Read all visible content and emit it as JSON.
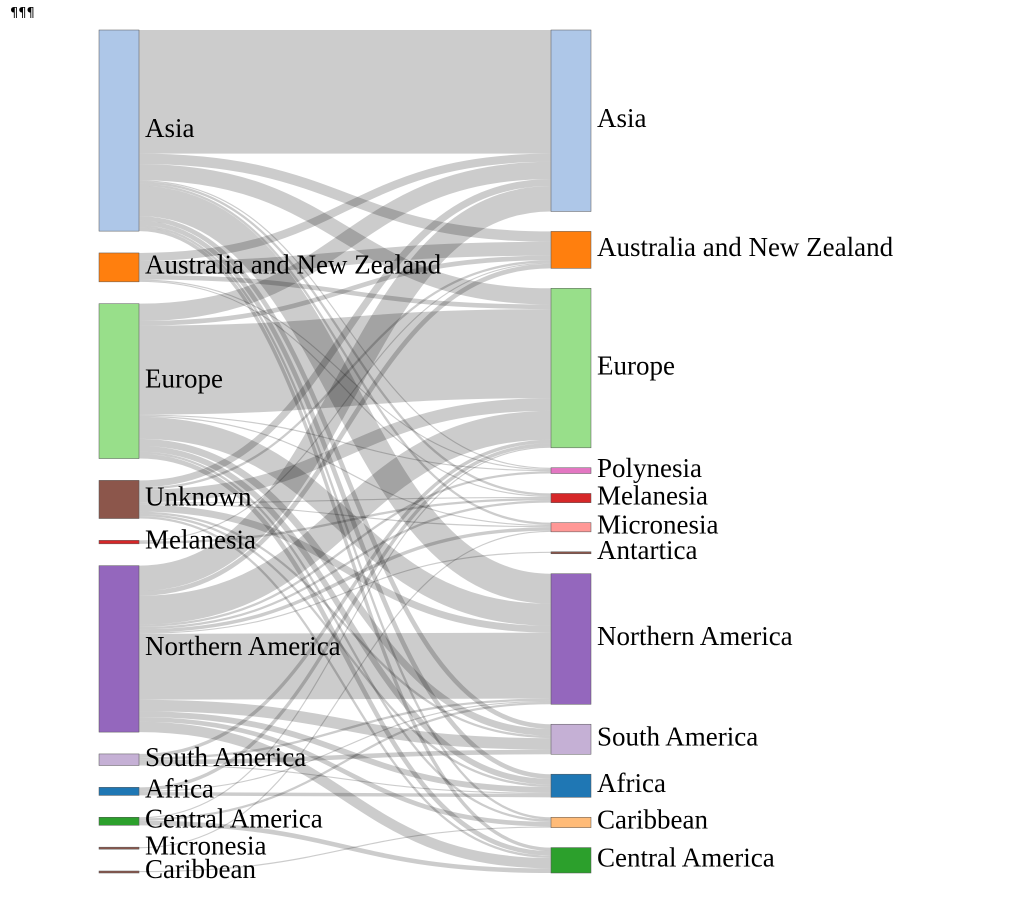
{
  "marker": "¶¶¶",
  "chart_data": {
    "type": "sankey",
    "value_unit": "",
    "source_nodes": [
      {
        "id": "s_asia",
        "label": "Asia",
        "color": "#aec7e8"
      },
      {
        "id": "s_anz",
        "label": "Australia and New Zealand",
        "color": "#ff7f0e"
      },
      {
        "id": "s_europe",
        "label": "Europe",
        "color": "#98df8a"
      },
      {
        "id": "s_unknown",
        "label": "Unknown",
        "color": "#8c564b"
      },
      {
        "id": "s_melanesia",
        "label": "Melanesia",
        "color": "#d62728"
      },
      {
        "id": "s_namerica",
        "label": "Northern America",
        "color": "#9467bd"
      },
      {
        "id": "s_samerica",
        "label": "South America",
        "color": "#c5b0d5"
      },
      {
        "id": "s_africa",
        "label": "Africa",
        "color": "#1f77b4"
      },
      {
        "id": "s_camerica",
        "label": "Central America",
        "color": "#2ca02c"
      },
      {
        "id": "s_micronesia",
        "label": "Micronesia",
        "color": "#8c564b"
      },
      {
        "id": "s_caribbean",
        "label": "Caribbean",
        "color": "#8c564b"
      }
    ],
    "target_nodes": [
      {
        "id": "t_asia",
        "label": "Asia",
        "color": "#aec7e8"
      },
      {
        "id": "t_anz",
        "label": "Australia and New Zealand",
        "color": "#ff7f0e"
      },
      {
        "id": "t_europe",
        "label": "Europe",
        "color": "#98df8a"
      },
      {
        "id": "t_polynesia",
        "label": "Polynesia",
        "color": "#e377c2"
      },
      {
        "id": "t_melanesia",
        "label": "Melanesia",
        "color": "#d62728"
      },
      {
        "id": "t_micronesia",
        "label": "Micronesia",
        "color": "#ff9896"
      },
      {
        "id": "t_antartica",
        "label": "Antartica",
        "color": "#8c564b"
      },
      {
        "id": "t_namerica",
        "label": "Northern America",
        "color": "#9467bd"
      },
      {
        "id": "t_samerica",
        "label": "South America",
        "color": "#c5b0d5"
      },
      {
        "id": "t_africa",
        "label": "Africa",
        "color": "#1f77b4"
      },
      {
        "id": "t_caribbean",
        "label": "Caribbean",
        "color": "#ffbb78"
      },
      {
        "id": "t_camerica",
        "label": "Central America",
        "color": "#2ca02c"
      }
    ],
    "links": [
      {
        "source": "s_asia",
        "target": "t_asia",
        "value": 107
      },
      {
        "source": "s_asia",
        "target": "t_anz",
        "value": 9
      },
      {
        "source": "s_asia",
        "target": "t_europe",
        "value": 14
      },
      {
        "source": "s_asia",
        "target": "t_polynesia",
        "value": 1
      },
      {
        "source": "s_asia",
        "target": "t_melanesia",
        "value": 2
      },
      {
        "source": "s_asia",
        "target": "t_micronesia",
        "value": 2
      },
      {
        "source": "s_asia",
        "target": "t_namerica",
        "value": 26
      },
      {
        "source": "s_asia",
        "target": "t_samerica",
        "value": 4
      },
      {
        "source": "s_asia",
        "target": "t_africa",
        "value": 4
      },
      {
        "source": "s_asia",
        "target": "t_caribbean",
        "value": 2
      },
      {
        "source": "s_asia",
        "target": "t_camerica",
        "value": 3
      },
      {
        "source": "s_anz",
        "target": "t_asia",
        "value": 7
      },
      {
        "source": "s_anz",
        "target": "t_anz",
        "value": 12
      },
      {
        "source": "s_anz",
        "target": "t_europe",
        "value": 4
      },
      {
        "source": "s_anz",
        "target": "t_polynesia",
        "value": 1
      },
      {
        "source": "s_anz",
        "target": "t_melanesia",
        "value": 1
      },
      {
        "source": "s_europe",
        "target": "t_asia",
        "value": 15
      },
      {
        "source": "s_europe",
        "target": "t_anz",
        "value": 4
      },
      {
        "source": "s_europe",
        "target": "t_europe",
        "value": 77
      },
      {
        "source": "s_europe",
        "target": "t_polynesia",
        "value": 1
      },
      {
        "source": "s_europe",
        "target": "t_micronesia",
        "value": 1
      },
      {
        "source": "s_europe",
        "target": "t_namerica",
        "value": 19
      },
      {
        "source": "s_europe",
        "target": "t_samerica",
        "value": 6
      },
      {
        "source": "s_europe",
        "target": "t_africa",
        "value": 5
      },
      {
        "source": "s_europe",
        "target": "t_caribbean",
        "value": 2
      },
      {
        "source": "s_europe",
        "target": "t_camerica",
        "value": 4
      },
      {
        "source": "s_unknown",
        "target": "t_asia",
        "value": 6
      },
      {
        "source": "s_unknown",
        "target": "t_anz",
        "value": 2
      },
      {
        "source": "s_unknown",
        "target": "t_europe",
        "value": 11
      },
      {
        "source": "s_unknown",
        "target": "t_melanesia",
        "value": 1
      },
      {
        "source": "s_unknown",
        "target": "t_micronesia",
        "value": 1
      },
      {
        "source": "s_unknown",
        "target": "t_namerica",
        "value": 6
      },
      {
        "source": "s_unknown",
        "target": "t_samerica",
        "value": 2
      },
      {
        "source": "s_unknown",
        "target": "t_africa",
        "value": 2
      },
      {
        "source": "s_unknown",
        "target": "t_camerica",
        "value": 2
      },
      {
        "source": "s_melanesia",
        "target": "t_anz",
        "value": 1
      },
      {
        "source": "s_melanesia",
        "target": "t_melanesia",
        "value": 2
      },
      {
        "source": "s_namerica",
        "target": "t_asia",
        "value": 22
      },
      {
        "source": "s_namerica",
        "target": "t_anz",
        "value": 4
      },
      {
        "source": "s_namerica",
        "target": "t_europe",
        "value": 25
      },
      {
        "source": "s_namerica",
        "target": "t_polynesia",
        "value": 2
      },
      {
        "source": "s_namerica",
        "target": "t_melanesia",
        "value": 2
      },
      {
        "source": "s_namerica",
        "target": "t_micronesia",
        "value": 3
      },
      {
        "source": "s_namerica",
        "target": "t_antartica",
        "value": 1
      },
      {
        "source": "s_namerica",
        "target": "t_namerica",
        "value": 57
      },
      {
        "source": "s_namerica",
        "target": "t_samerica",
        "value": 10
      },
      {
        "source": "s_namerica",
        "target": "t_africa",
        "value": 5
      },
      {
        "source": "s_namerica",
        "target": "t_caribbean",
        "value": 4
      },
      {
        "source": "s_namerica",
        "target": "t_camerica",
        "value": 9
      },
      {
        "source": "s_samerica",
        "target": "t_europe",
        "value": 3
      },
      {
        "source": "s_samerica",
        "target": "t_namerica",
        "value": 2
      },
      {
        "source": "s_samerica",
        "target": "t_samerica",
        "value": 4
      },
      {
        "source": "s_samerica",
        "target": "t_africa",
        "value": 1
      },
      {
        "source": "s_africa",
        "target": "t_europe",
        "value": 3
      },
      {
        "source": "s_africa",
        "target": "t_namerica",
        "value": 1
      },
      {
        "source": "s_africa",
        "target": "t_africa",
        "value": 3
      },
      {
        "source": "s_camerica",
        "target": "t_europe",
        "value": 1
      },
      {
        "source": "s_camerica",
        "target": "t_namerica",
        "value": 2
      },
      {
        "source": "s_camerica",
        "target": "t_camerica",
        "value": 4
      },
      {
        "source": "s_micronesia",
        "target": "t_micronesia",
        "value": 1
      },
      {
        "source": "s_caribbean",
        "target": "t_caribbean",
        "value": 1
      }
    ]
  }
}
